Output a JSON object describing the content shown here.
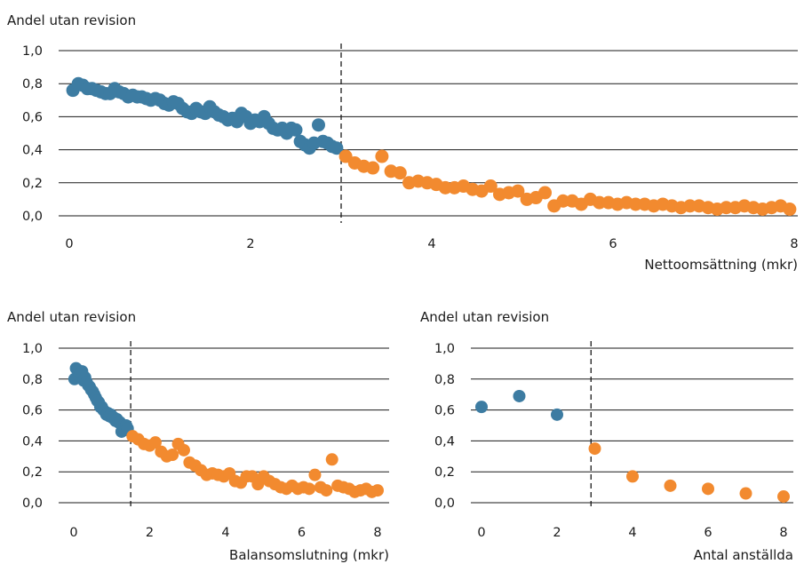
{
  "chart_data": [
    {
      "type": "scatter",
      "ylabel": "Andel utan revision",
      "xlabel": "Nettoomsättning (mkr)",
      "xlim": [
        0,
        8
      ],
      "ylim": [
        0,
        1
      ],
      "x_ticks": [
        "0",
        "2",
        "4",
        "6",
        "8"
      ],
      "y_ticks": [
        "0,0",
        "0,2",
        "0,4",
        "0,6",
        "0,8",
        "1,0"
      ],
      "threshold_x": 3,
      "grid": "horizontal",
      "colors": {
        "below": "#3d7ca2",
        "above": "#f28a2f"
      },
      "series": [
        {
          "x": [
            0.04,
            0.1,
            0.15,
            0.2,
            0.25,
            0.3,
            0.35,
            0.4,
            0.45,
            0.5,
            0.55,
            0.6,
            0.65,
            0.7,
            0.75,
            0.8,
            0.85,
            0.9,
            0.95,
            1.0,
            1.05,
            1.1,
            1.15,
            1.2,
            1.25,
            1.3,
            1.35,
            1.4,
            1.45,
            1.5,
            1.55,
            1.6,
            1.65,
            1.7,
            1.75,
            1.8,
            1.85,
            1.9,
            1.95,
            2.0,
            2.05,
            2.1,
            2.15,
            2.2,
            2.25,
            2.3,
            2.35,
            2.4,
            2.45,
            2.5,
            2.55,
            2.6,
            2.65,
            2.7,
            2.75,
            2.8,
            2.85,
            2.9,
            2.95
          ],
          "y": [
            0.76,
            0.8,
            0.79,
            0.77,
            0.77,
            0.76,
            0.75,
            0.74,
            0.74,
            0.77,
            0.75,
            0.74,
            0.72,
            0.73,
            0.72,
            0.72,
            0.71,
            0.7,
            0.71,
            0.7,
            0.68,
            0.67,
            0.69,
            0.68,
            0.65,
            0.63,
            0.62,
            0.65,
            0.63,
            0.62,
            0.66,
            0.63,
            0.61,
            0.6,
            0.58,
            0.59,
            0.57,
            0.62,
            0.6,
            0.56,
            0.58,
            0.57,
            0.6,
            0.56,
            0.53,
            0.52,
            0.53,
            0.5,
            0.53,
            0.52,
            0.45,
            0.43,
            0.41,
            0.44,
            0.55,
            0.45,
            0.44,
            0.42,
            0.41
          ]
        },
        {
          "x": [
            3.05,
            3.15,
            3.25,
            3.35,
            3.45,
            3.55,
            3.65,
            3.75,
            3.85,
            3.95,
            4.05,
            4.15,
            4.25,
            4.35,
            4.45,
            4.55,
            4.65,
            4.75,
            4.85,
            4.95,
            5.05,
            5.15,
            5.25,
            5.35,
            5.45,
            5.55,
            5.65,
            5.75,
            5.85,
            5.95,
            6.05,
            6.15,
            6.25,
            6.35,
            6.45,
            6.55,
            6.65,
            6.75,
            6.85,
            6.95,
            7.05,
            7.15,
            7.25,
            7.35,
            7.45,
            7.55,
            7.65,
            7.75,
            7.85,
            7.95
          ],
          "y": [
            0.36,
            0.32,
            0.3,
            0.29,
            0.36,
            0.27,
            0.26,
            0.2,
            0.21,
            0.2,
            0.19,
            0.17,
            0.17,
            0.18,
            0.16,
            0.15,
            0.18,
            0.13,
            0.14,
            0.15,
            0.1,
            0.11,
            0.14,
            0.06,
            0.09,
            0.09,
            0.07,
            0.1,
            0.08,
            0.08,
            0.07,
            0.08,
            0.07,
            0.07,
            0.06,
            0.07,
            0.06,
            0.05,
            0.06,
            0.06,
            0.05,
            0.04,
            0.05,
            0.05,
            0.06,
            0.05,
            0.04,
            0.05,
            0.06,
            0.04
          ]
        }
      ]
    },
    {
      "type": "scatter",
      "ylabel": "Andel utan revision",
      "xlabel": "Balansomslutning (mkr)",
      "xlim": [
        0,
        8
      ],
      "ylim": [
        0,
        1
      ],
      "x_ticks": [
        "0",
        "2",
        "4",
        "6",
        "8"
      ],
      "y_ticks": [
        "0,0",
        "0,2",
        "0,4",
        "0,6",
        "0,8",
        "1,0"
      ],
      "threshold_x": 1.5,
      "grid": "horizontal",
      "colors": {
        "below": "#3d7ca2",
        "above": "#f28a2f"
      },
      "series": [
        {
          "x": [
            0.02,
            0.06,
            0.1,
            0.14,
            0.18,
            0.22,
            0.26,
            0.3,
            0.34,
            0.38,
            0.42,
            0.46,
            0.5,
            0.54,
            0.58,
            0.62,
            0.66,
            0.7,
            0.74,
            0.78,
            0.82,
            0.86,
            0.9,
            0.94,
            0.98,
            1.02,
            1.06,
            1.1,
            1.14,
            1.18,
            1.22,
            1.26,
            1.3,
            1.34,
            1.38,
            1.42
          ],
          "y": [
            0.8,
            0.87,
            0.86,
            0.82,
            0.84,
            0.85,
            0.79,
            0.81,
            0.78,
            0.76,
            0.75,
            0.73,
            0.72,
            0.7,
            0.68,
            0.66,
            0.65,
            0.62,
            0.62,
            0.6,
            0.59,
            0.57,
            0.58,
            0.56,
            0.57,
            0.55,
            0.55,
            0.53,
            0.54,
            0.52,
            0.52,
            0.46,
            0.5,
            0.47,
            0.5,
            0.48
          ]
        },
        {
          "x": [
            1.55,
            1.7,
            1.85,
            2.0,
            2.15,
            2.3,
            2.45,
            2.6,
            2.75,
            2.9,
            3.05,
            3.2,
            3.35,
            3.5,
            3.65,
            3.8,
            3.95,
            4.1,
            4.25,
            4.4,
            4.55,
            4.7,
            4.85,
            5.0,
            5.15,
            5.3,
            5.45,
            5.6,
            5.75,
            5.9,
            6.05,
            6.2,
            6.35,
            6.5,
            6.65,
            6.8,
            6.95,
            7.1,
            7.25,
            7.4,
            7.55,
            7.7,
            7.85,
            8.0
          ],
          "y": [
            0.43,
            0.41,
            0.38,
            0.37,
            0.39,
            0.33,
            0.3,
            0.31,
            0.38,
            0.34,
            0.26,
            0.24,
            0.21,
            0.18,
            0.19,
            0.18,
            0.17,
            0.19,
            0.14,
            0.13,
            0.17,
            0.17,
            0.12,
            0.17,
            0.14,
            0.12,
            0.1,
            0.09,
            0.11,
            0.09,
            0.1,
            0.09,
            0.18,
            0.1,
            0.08,
            0.28,
            0.11,
            0.1,
            0.09,
            0.07,
            0.08,
            0.09,
            0.07,
            0.08
          ]
        }
      ]
    },
    {
      "type": "scatter",
      "ylabel": "Andel utan revision",
      "xlabel": "Antal anställda",
      "xlim": [
        0,
        8
      ],
      "ylim": [
        0,
        1
      ],
      "x_ticks": [
        "0",
        "2",
        "4",
        "6",
        "8"
      ],
      "y_ticks": [
        "0,0",
        "0,2",
        "0,4",
        "0,6",
        "0,8",
        "1,0"
      ],
      "threshold_x": 2.9,
      "grid": "horizontal",
      "colors": {
        "below": "#3d7ca2",
        "above": "#f28a2f"
      },
      "series": [
        {
          "x": [
            0,
            1,
            2
          ],
          "y": [
            0.62,
            0.69,
            0.57
          ]
        },
        {
          "x": [
            3,
            4,
            5,
            6,
            7,
            8
          ],
          "y": [
            0.35,
            0.17,
            0.11,
            0.09,
            0.06,
            0.04
          ]
        }
      ]
    }
  ]
}
